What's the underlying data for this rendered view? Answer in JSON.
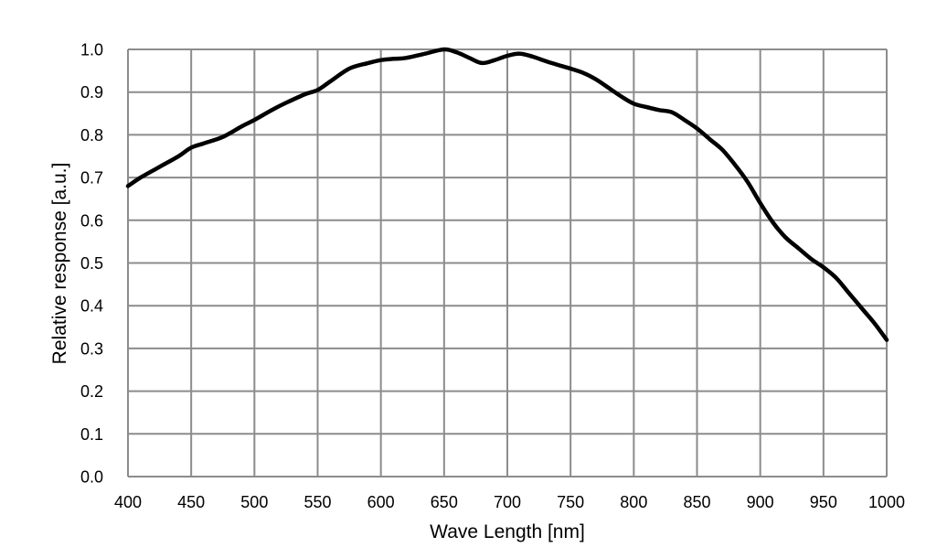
{
  "chart_data": {
    "type": "line",
    "title": "",
    "xlabel": "Wave Length [nm]",
    "ylabel": "Relative response [a.u.]",
    "xlim": [
      400,
      1000
    ],
    "ylim": [
      0.0,
      1.0
    ],
    "grid": true,
    "legend": null,
    "x_ticks": [
      "400",
      "450",
      "500",
      "550",
      "600",
      "650",
      "700",
      "750",
      "800",
      "850",
      "900",
      "950",
      "1000"
    ],
    "y_ticks": [
      "0.0",
      "0.1",
      "0.2",
      "0.3",
      "0.4",
      "0.5",
      "0.6",
      "0.7",
      "0.8",
      "0.9",
      "1.0"
    ],
    "series": [
      {
        "name": "Relative response",
        "color": "#000000",
        "x": [
          400,
          410,
          425,
          440,
          450,
          460,
          475,
          490,
          500,
          515,
          525,
          540,
          550,
          560,
          575,
          590,
          600,
          610,
          620,
          635,
          650,
          660,
          670,
          680,
          690,
          700,
          710,
          720,
          735,
          750,
          760,
          770,
          780,
          790,
          800,
          810,
          820,
          830,
          840,
          850,
          860,
          870,
          880,
          890,
          900,
          910,
          920,
          930,
          940,
          950,
          960,
          970,
          980,
          990,
          1000
        ],
        "values": [
          0.68,
          0.7,
          0.725,
          0.75,
          0.77,
          0.78,
          0.795,
          0.82,
          0.835,
          0.86,
          0.875,
          0.895,
          0.905,
          0.925,
          0.955,
          0.968,
          0.975,
          0.978,
          0.98,
          0.99,
          1.0,
          0.993,
          0.98,
          0.968,
          0.975,
          0.985,
          0.99,
          0.983,
          0.968,
          0.955,
          0.945,
          0.93,
          0.91,
          0.89,
          0.873,
          0.865,
          0.858,
          0.853,
          0.835,
          0.815,
          0.79,
          0.765,
          0.73,
          0.69,
          0.64,
          0.595,
          0.56,
          0.535,
          0.51,
          0.49,
          0.465,
          0.43,
          0.395,
          0.36,
          0.32
        ]
      }
    ]
  }
}
